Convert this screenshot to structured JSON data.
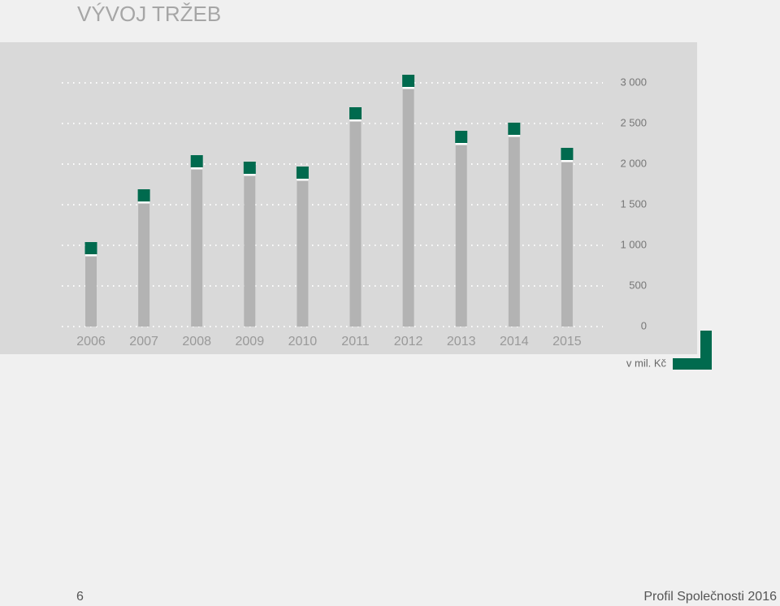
{
  "header": {
    "title": "VÝVOJ TRŽEB"
  },
  "chart_data": {
    "type": "bar",
    "categories": [
      "2006",
      "2007",
      "2008",
      "2009",
      "2010",
      "2011",
      "2012",
      "2013",
      "2014",
      "2015"
    ],
    "values": [
      860,
      1510,
      1930,
      1850,
      1790,
      2520,
      2920,
      2230,
      2330,
      2020
    ],
    "color": "#b3b3b3",
    "marker_color": "#006a4e",
    "ylim": [
      0,
      3000
    ],
    "yticks": [
      0,
      500,
      {
        "value": 1000,
        "label": "1 000"
      },
      {
        "value": 1500,
        "label": "1 500"
      },
      {
        "value": 2000,
        "label": "2 000"
      },
      {
        "value": 2500,
        "label": "2 500"
      },
      {
        "value": 3000,
        "label": "3 000"
      }
    ],
    "grid": true,
    "unit_label": "v mil. Kč"
  },
  "footer": {
    "page_number": 6,
    "text": "Profil Společnosti 2016"
  }
}
